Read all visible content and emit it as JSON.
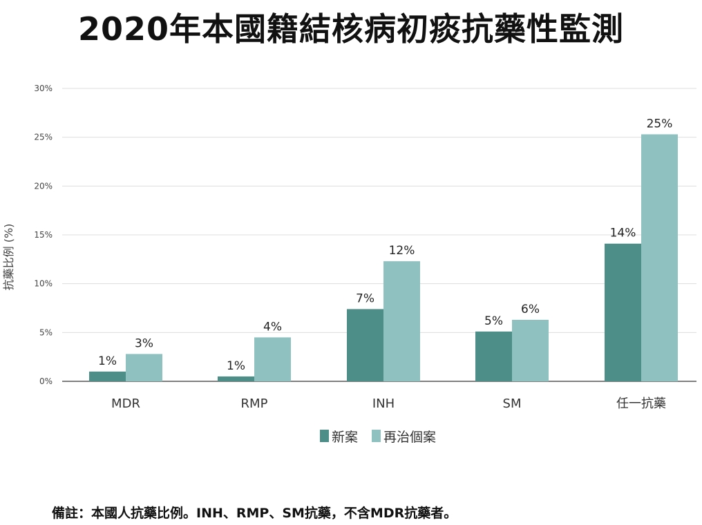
{
  "title": "2020年本國籍結核病初痰抗藥性監測",
  "footnote": "備註：本國人抗藥比例。INH、RMP、SM抗藥，不含MDR抗藥者。",
  "colors": {
    "new": "#4d8f88",
    "retreat": "#8fc1c1",
    "grid": "#dddddd",
    "axis": "#555555"
  },
  "chart_data": {
    "type": "bar",
    "title": "2020年本國籍結核病初痰抗藥性監測",
    "ylabel": "抗藥比例 (%)",
    "xlabel": "",
    "ylim": [
      0,
      30
    ],
    "yticks": [
      "0%",
      "5%",
      "10%",
      "15%",
      "20%",
      "25%",
      "30%"
    ],
    "categories": [
      "MDR",
      "RMP",
      "INH",
      "SM",
      "任一抗藥"
    ],
    "series": [
      {
        "name": "新案",
        "values": [
          1,
          0.5,
          7.4,
          5.1,
          14.1
        ],
        "labels": [
          "1%",
          "1%",
          "7%",
          "5%",
          "14%"
        ]
      },
      {
        "name": "再治個案",
        "values": [
          2.8,
          4.5,
          12.3,
          6.3,
          25.3
        ],
        "labels": [
          "3%",
          "4%",
          "12%",
          "6%",
          "25%"
        ]
      }
    ],
    "grid": true,
    "legend": "bottom-center"
  }
}
